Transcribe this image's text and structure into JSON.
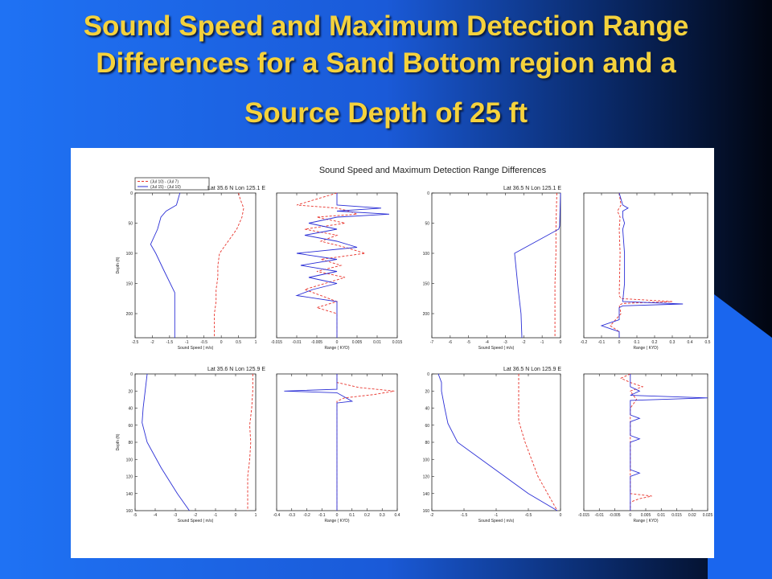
{
  "slide": {
    "title_line1": "Sound Speed and Maximum Detection Range",
    "title_line2": "Differences for a Sand Bottom region and a",
    "title_line3": "Source Depth of 25 ft",
    "colors": {
      "bg_left": "#1f6ff0",
      "bg_right": "#020614",
      "title": "#f5d23c"
    }
  },
  "chart_data": {
    "type": "line",
    "title": "Sound Speed and Maximum Detection Range Differences",
    "legend": {
      "placement": "top-left",
      "entries": [
        "(Jul 10) - (Jul 7)",
        "(Jul 15) - (Jul 10)"
      ]
    },
    "series_styles": [
      {
        "color": "#e8322a",
        "dash": "dashed"
      },
      {
        "color": "#2b2fd6",
        "dash": "solid"
      }
    ],
    "panels": [
      {
        "location": "Lat 35.6 N  Lon 125.1 E",
        "sound_speed": {
          "xlabel": "Sound Speed ( m/s)",
          "ylabel": "Depth (ft)",
          "xlim": [
            -2.5,
            1
          ],
          "ylim": [
            0,
            240
          ],
          "xticks": [
            "-2.5",
            "-2",
            "-1.5",
            "-1",
            "-0.5",
            "0",
            "0.5",
            "1"
          ],
          "yticks": [
            "0",
            "50",
            "100",
            "150",
            "200"
          ],
          "series": [
            {
              "depth": [
                0,
                10,
                25,
                40,
                60,
                80,
                100,
                120,
                140,
                160,
                180,
                200,
                240
              ],
              "values": [
                0.5,
                0.55,
                0.65,
                0.6,
                0.45,
                0.2,
                -0.05,
                -0.1,
                -0.1,
                -0.15,
                -0.15,
                -0.2,
                -0.2
              ]
            },
            {
              "depth": [
                0,
                20,
                30,
                40,
                60,
                85,
                100,
                130,
                165,
                240
              ],
              "values": [
                -1.2,
                -1.3,
                -1.6,
                -1.75,
                -1.85,
                -2.05,
                -1.9,
                -1.65,
                -1.35,
                -1.35
              ]
            }
          ]
        },
        "range": {
          "xlabel": "Range ( KYD)",
          "ylabel": "",
          "xlim": [
            -0.015,
            0.015
          ],
          "ylim": [
            0,
            240
          ],
          "xticks": [
            "-0.015",
            "-0.01",
            "-0.005",
            "0",
            "0.005",
            "0.01",
            "0.015"
          ],
          "yticks": [],
          "series": [
            {
              "depth": [
                0,
                20,
                25,
                30,
                35,
                40,
                50,
                60,
                70,
                80,
                90,
                100,
                110,
                120,
                130,
                140,
                150,
                160,
                170,
                180,
                190,
                200,
                210,
                240
              ],
              "values": [
                0,
                -0.01,
                0,
                0.003,
                0.005,
                -0.005,
                0.002,
                -0.008,
                0,
                -0.004,
                0.002,
                0.007,
                -0.004,
                0.001,
                -0.005,
                0.002,
                -0.003,
                -0.008,
                -0.004,
                0,
                -0.005,
                0,
                0,
                0
              ]
            },
            {
              "depth": [
                0,
                20,
                25,
                30,
                35,
                40,
                50,
                60,
                70,
                80,
                90,
                100,
                110,
                120,
                130,
                140,
                150,
                160,
                170,
                180,
                240
              ],
              "values": [
                0,
                0,
                0.011,
                0,
                0.013,
                0,
                -0.007,
                0,
                -0.008,
                0,
                0.005,
                -0.01,
                0,
                -0.009,
                0,
                -0.007,
                0,
                -0.006,
                -0.01,
                0,
                0
              ]
            }
          ]
        }
      },
      {
        "location": "Lat 36.5 N  Lon 125.1 E",
        "sound_speed": {
          "xlabel": "Sound Speed ( m/s)",
          "ylabel": "",
          "xlim": [
            -7,
            0
          ],
          "ylim": [
            0,
            240
          ],
          "xticks": [
            "-7",
            "-6",
            "-5",
            "-4",
            "-3",
            "-2",
            "-1",
            "0"
          ],
          "yticks": [
            "0",
            "50",
            "100",
            "150",
            "200"
          ],
          "series": [
            {
              "depth": [
                0,
                60,
                100,
                150,
                200,
                240
              ],
              "values": [
                -0.2,
                -0.25,
                -0.25,
                -0.3,
                -0.3,
                -0.3
              ]
            },
            {
              "depth": [
                0,
                55,
                60,
                100,
                160,
                200,
                240
              ],
              "values": [
                0,
                -0.05,
                -0.1,
                -2.5,
                -2.3,
                -2.15,
                -2.1
              ]
            }
          ]
        },
        "range": {
          "xlabel": "Range ( KYD)",
          "ylabel": "",
          "xlim": [
            -0.2,
            0.5
          ],
          "ylim": [
            0,
            240
          ],
          "xticks": [
            "-0.2",
            "-0.1",
            "0",
            "0.1",
            "0.2",
            "0.3",
            "0.4",
            "0.5"
          ],
          "yticks": [],
          "series": [
            {
              "depth": [
                0,
                20,
                30,
                40,
                60,
                100,
                170,
                175,
                180,
                183,
                186,
                200,
                220,
                230,
                240
              ],
              "values": [
                0,
                0.01,
                -0.01,
                0.005,
                0,
                0.005,
                0,
                0.01,
                0.3,
                0.02,
                0,
                0.01,
                -0.05,
                0,
                0
              ]
            },
            {
              "depth": [
                0,
                20,
                25,
                30,
                40,
                50,
                60,
                100,
                150,
                180,
                184,
                187,
                190,
                210,
                220,
                230,
                240
              ],
              "values": [
                0,
                0.02,
                0.05,
                0.02,
                0.02,
                0.03,
                0.02,
                0.03,
                0.03,
                0.02,
                0.36,
                0.02,
                0,
                0,
                -0.1,
                0,
                0
              ]
            }
          ]
        }
      },
      {
        "location": "Lat 35.6 N  Lon 125.9 E",
        "sound_speed": {
          "xlabel": "Sound Speed ( m/s)",
          "ylabel": "Depth (ft)",
          "xlim": [
            -5,
            1
          ],
          "ylim": [
            0,
            160
          ],
          "xticks": [
            "-5",
            "-4",
            "-3",
            "-2",
            "-1",
            "0",
            "1"
          ],
          "yticks": [
            "0",
            "20",
            "40",
            "60",
            "80",
            "100",
            "120",
            "140",
            "160"
          ],
          "series": [
            {
              "depth": [
                0,
                20,
                40,
                60,
                80,
                100,
                120,
                140,
                160
              ],
              "values": [
                0.85,
                0.85,
                0.8,
                0.7,
                0.75,
                0.7,
                0.6,
                0.6,
                0.6
              ]
            },
            {
              "depth": [
                0,
                20,
                40,
                57,
                80,
                110,
                140,
                160
              ],
              "values": [
                -4.4,
                -4.5,
                -4.6,
                -4.65,
                -4.4,
                -3.7,
                -2.9,
                -2.3
              ]
            }
          ]
        },
        "range": {
          "xlabel": "Range ( KYD)",
          "ylabel": "",
          "xlim": [
            -0.4,
            0.4
          ],
          "ylim": [
            0,
            160
          ],
          "xticks": [
            "-0.4",
            "-0.3",
            "-0.2",
            "-0.1",
            "0",
            "0.1",
            "0.2",
            "0.3",
            "0.4"
          ],
          "yticks": [],
          "series": [
            {
              "depth": [
                0,
                10,
                16,
                20,
                24,
                28,
                32,
                50,
                70,
                90,
                100,
                120,
                160
              ],
              "values": [
                0,
                0,
                0.15,
                0.38,
                0.25,
                0.05,
                0,
                0,
                0,
                0,
                0,
                0,
                0
              ]
            },
            {
              "depth": [
                0,
                10,
                18,
                20,
                22,
                32,
                34,
                100,
                160
              ],
              "values": [
                0,
                0,
                0,
                -0.35,
                0,
                0.1,
                0,
                0,
                0
              ]
            }
          ]
        }
      },
      {
        "location": "Lat 36.5 N  Lon 125.9 E",
        "sound_speed": {
          "xlabel": "Sound Speed ( m/s)",
          "ylabel": "",
          "xlim": [
            -2,
            0
          ],
          "ylim": [
            0,
            160
          ],
          "xticks": [
            "-2",
            "-1.5",
            "-1",
            "-0.5",
            "0"
          ],
          "yticks": [
            "0",
            "20",
            "40",
            "60",
            "80",
            "100",
            "120",
            "140",
            "160"
          ],
          "series": [
            {
              "depth": [
                0,
                55,
                80,
                100,
                120,
                140,
                160
              ],
              "values": [
                -0.65,
                -0.65,
                -0.55,
                -0.45,
                -0.35,
                -0.2,
                -0.05
              ]
            },
            {
              "depth": [
                0,
                10,
                20,
                40,
                58,
                80,
                110,
                140,
                160
              ],
              "values": [
                -1.9,
                -1.85,
                -1.85,
                -1.8,
                -1.75,
                -1.6,
                -1.05,
                -0.5,
                -0.05
              ]
            }
          ]
        },
        "range": {
          "xlabel": "Range ( KYD)",
          "ylabel": "",
          "xlim": [
            -0.015,
            0.025
          ],
          "ylim": [
            0,
            160
          ],
          "xticks": [
            "-0.015",
            "-0.01",
            "-0.005",
            "0",
            "0.005",
            "0.01",
            "0.015",
            "0.02",
            "0.025"
          ],
          "yticks": [],
          "series": [
            {
              "depth": [
                0,
                5,
                10,
                15,
                20,
                30,
                40,
                140,
                143,
                146,
                150,
                160
              ],
              "values": [
                0,
                -0.003,
                0,
                0.004,
                0,
                0.002,
                0,
                0,
                0.007,
                0.003,
                0,
                0
              ]
            },
            {
              "depth": [
                0,
                15,
                20,
                25,
                28,
                31,
                40,
                48,
                52,
                56,
                72,
                76,
                80,
                112,
                116,
                120,
                160
              ],
              "values": [
                0,
                0,
                0.003,
                0,
                0.025,
                0,
                0,
                0,
                0.003,
                0,
                0,
                0.003,
                0,
                0,
                0.003,
                0,
                0
              ]
            }
          ]
        }
      }
    ]
  }
}
